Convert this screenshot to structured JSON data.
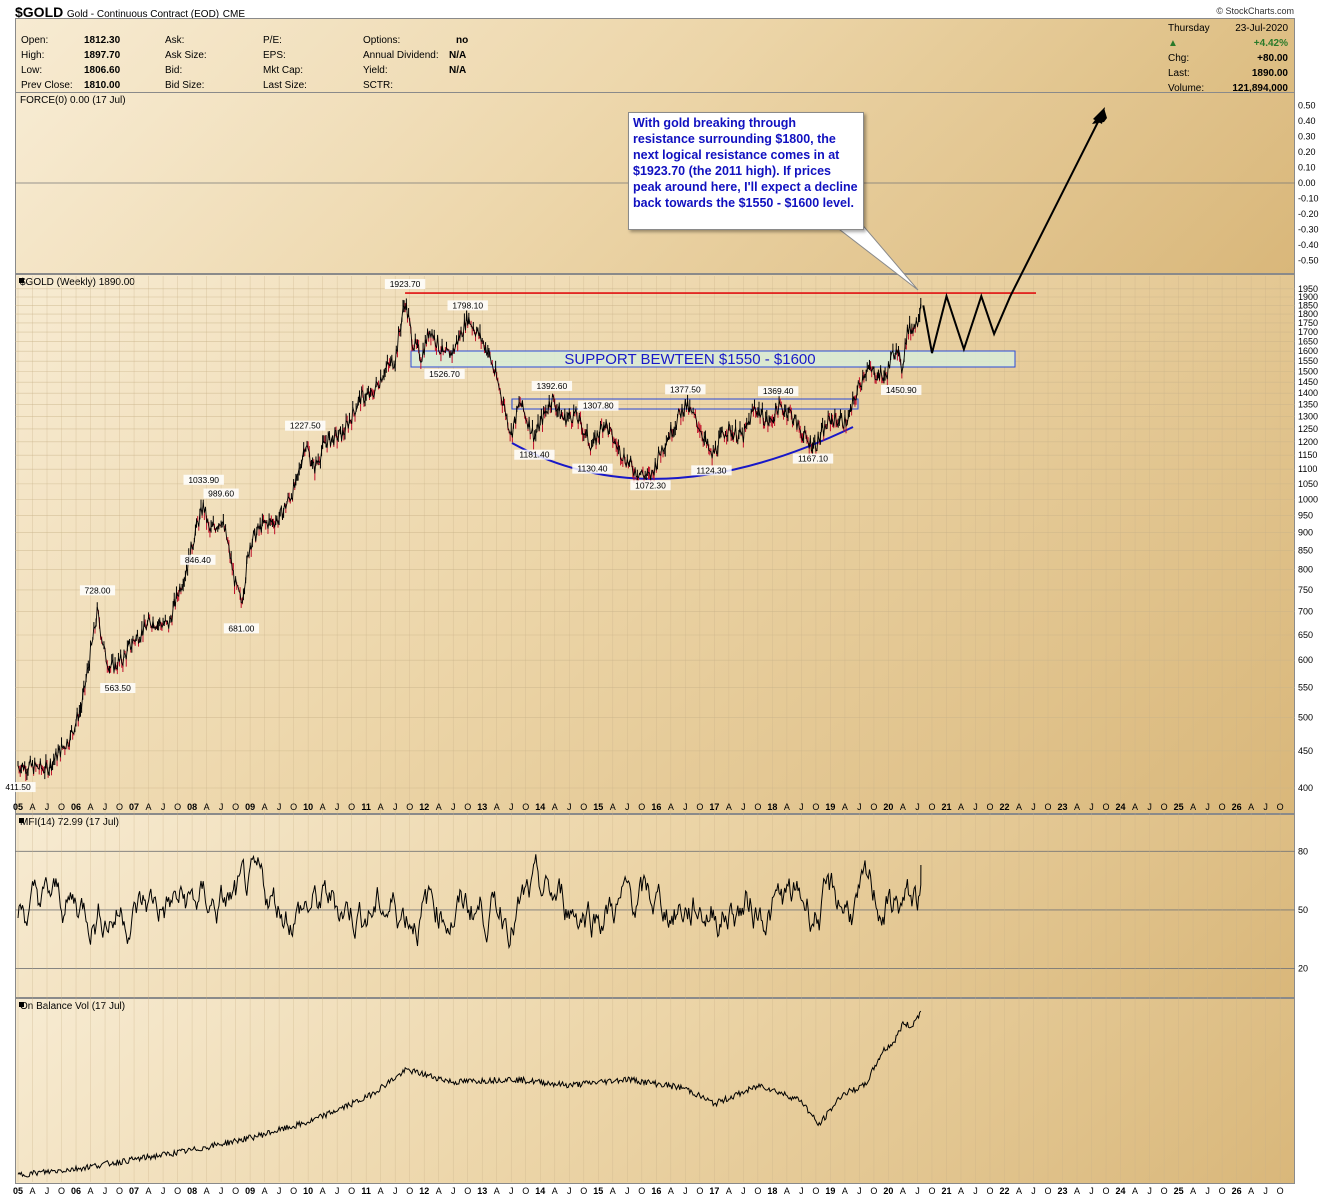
{
  "header": {
    "symbol": "$GOLD",
    "description": "Gold - Continuous Contract (EOD)",
    "exchange": "CME",
    "brand": "© StockCharts.com"
  },
  "info": {
    "open_label": "Open:",
    "open": "1812.30",
    "high_label": "High:",
    "high": "1897.70",
    "low_label": "Low:",
    "low": "1806.60",
    "prev_label": "Prev Close:",
    "prev": "1810.00",
    "ask_label": "Ask:",
    "asksize_label": "Ask Size:",
    "bid_label": "Bid:",
    "bidsize_label": "Bid Size:",
    "pe_label": "P/E:",
    "eps_label": "EPS:",
    "mktcap_label": "Mkt Cap:",
    "lastsize_label": "Last Size:",
    "options_label": "Options:",
    "options": "no",
    "div_label": "Annual Dividend:",
    "div": "N/A",
    "yield_label": "Yield:",
    "yield": "N/A",
    "sctr_label": "SCTR:"
  },
  "quote": {
    "day": "Thursday",
    "date": "23-Jul-2020",
    "pct": "+4.42%",
    "chg_label": "Chg:",
    "chg": "+80.00",
    "last_label": "Last:",
    "last": "1890.00",
    "volume_label": "Volume:",
    "volume": "121,894,000"
  },
  "force_label": "FORCE(0) 0.00 (17 Jul)",
  "main_label": "$GOLD (Weekly) 1890.00",
  "mfi_label": "MFI(14) 72.99 (17 Jul)",
  "obv_label": "On Balance Vol (17 Jul)",
  "callout_text": "With gold breaking through resistance surrounding $1800, the next logical resistance comes in at $1923.70 (the 2011 high). If prices peak around here, I'll expect a decline back towards the $1550 - $1600 level.",
  "support_label": "SUPPORT BEWTEEN $1550 - $1600",
  "colors": {
    "price": "#000000",
    "down": "#c0102a",
    "resistance": "#e01010",
    "support_fill": "#d8ecd8",
    "support_border": "#2a4ad8",
    "label_blue": "#1818c8"
  },
  "chart_data": [
    {
      "type": "candlestick",
      "panel": "price",
      "y_scale": "log",
      "yticks": [
        1950,
        1900,
        1850,
        1800,
        1750,
        1700,
        1650,
        1600,
        1550,
        1500,
        1450,
        1400,
        1350,
        1300,
        1250,
        1200,
        1150,
        1100,
        1050,
        1000,
        950,
        900,
        850,
        800,
        750,
        700,
        650,
        600,
        550,
        500,
        450,
        400
      ],
      "x_axis_labels": [
        "05",
        "A",
        "J",
        "O",
        "06",
        "A",
        "J",
        "O",
        "07",
        "A",
        "J",
        "O",
        "08",
        "A",
        "J",
        "O",
        "09",
        "A",
        "J",
        "O",
        "10",
        "A",
        "J",
        "O",
        "11",
        "A",
        "J",
        "O",
        "12",
        "A",
        "J",
        "O",
        "13",
        "A",
        "J",
        "O",
        "14",
        "A",
        "J",
        "O",
        "15",
        "A",
        "J",
        "O",
        "16",
        "A",
        "J",
        "O",
        "17",
        "A",
        "J",
        "O",
        "18",
        "A",
        "J",
        "O",
        "19",
        "A",
        "J",
        "O",
        "20",
        "A",
        "J",
        "O",
        "21",
        "A",
        "J",
        "O",
        "22",
        "A",
        "J",
        "O",
        "23",
        "A",
        "J",
        "O",
        "24",
        "A",
        "J",
        "O",
        "25",
        "A",
        "J",
        "O",
        "26",
        "A",
        "J",
        "O"
      ],
      "x_range": [
        2005.0,
        2026.92
      ],
      "close_path": [
        [
          2005.0,
          430
        ],
        [
          2005.5,
          425
        ],
        [
          2005.9,
          470
        ],
        [
          2006.1,
          520
        ],
        [
          2006.37,
          700
        ],
        [
          2006.5,
          610
        ],
        [
          2006.6,
          585
        ],
        [
          2006.8,
          600
        ],
        [
          2007.0,
          640
        ],
        [
          2007.3,
          680
        ],
        [
          2007.6,
          670
        ],
        [
          2007.75,
          740
        ],
        [
          2007.9,
          800
        ],
        [
          2008.05,
          900
        ],
        [
          2008.2,
          980
        ],
        [
          2008.3,
          900
        ],
        [
          2008.5,
          940
        ],
        [
          2008.6,
          880
        ],
        [
          2008.75,
          760
        ],
        [
          2008.85,
          720
        ],
        [
          2009.0,
          870
        ],
        [
          2009.2,
          920
        ],
        [
          2009.5,
          940
        ],
        [
          2009.8,
          1050
        ],
        [
          2009.95,
          1200
        ],
        [
          2010.1,
          1100
        ],
        [
          2010.3,
          1200
        ],
        [
          2010.6,
          1230
        ],
        [
          2010.9,
          1380
        ],
        [
          2011.1,
          1390
        ],
        [
          2011.3,
          1500
        ],
        [
          2011.5,
          1560
        ],
        [
          2011.6,
          1750
        ],
        [
          2011.67,
          1880
        ],
        [
          2011.8,
          1650
        ],
        [
          2011.95,
          1570
        ],
        [
          2012.1,
          1720
        ],
        [
          2012.35,
          1570
        ],
        [
          2012.5,
          1600
        ],
        [
          2012.75,
          1780
        ],
        [
          2012.95,
          1680
        ],
        [
          2013.1,
          1600
        ],
        [
          2013.3,
          1420
        ],
        [
          2013.5,
          1230
        ],
        [
          2013.65,
          1360
        ],
        [
          2013.9,
          1220
        ],
        [
          2014.2,
          1380
        ],
        [
          2014.4,
          1290
        ],
        [
          2014.6,
          1310
        ],
        [
          2014.9,
          1180
        ],
        [
          2015.1,
          1280
        ],
        [
          2015.3,
          1190
        ],
        [
          2015.6,
          1100
        ],
        [
          2015.9,
          1070
        ],
        [
          2016.1,
          1180
        ],
        [
          2016.5,
          1350
        ],
        [
          2016.75,
          1260
        ],
        [
          2016.95,
          1140
        ],
        [
          2017.2,
          1250
        ],
        [
          2017.5,
          1220
        ],
        [
          2017.7,
          1340
        ],
        [
          2017.95,
          1270
        ],
        [
          2018.1,
          1340
        ],
        [
          2018.3,
          1320
        ],
        [
          2018.6,
          1200
        ],
        [
          2018.75,
          1190
        ],
        [
          2019.0,
          1290
        ],
        [
          2019.3,
          1280
        ],
        [
          2019.45,
          1400
        ],
        [
          2019.6,
          1510
        ],
        [
          2019.8,
          1490
        ],
        [
          2019.95,
          1470
        ],
        [
          2020.05,
          1560
        ],
        [
          2020.15,
          1640
        ],
        [
          2020.22,
          1490
        ],
        [
          2020.32,
          1700
        ],
        [
          2020.4,
          1720
        ],
        [
          2020.5,
          1760
        ],
        [
          2020.56,
          1890
        ]
      ],
      "annotations": [
        {
          "label": "411.50",
          "x": 2005.0,
          "y": 411.5
        },
        {
          "label": "728.00",
          "x": 2006.37,
          "y": 728.0
        },
        {
          "label": "563.50",
          "x": 2006.72,
          "y": 563.5
        },
        {
          "label": "1033.90",
          "x": 2008.2,
          "y": 1033.9
        },
        {
          "label": "989.60",
          "x": 2008.5,
          "y": 989.6
        },
        {
          "label": "846.40",
          "x": 2008.1,
          "y": 846.4
        },
        {
          "label": "681.00",
          "x": 2008.85,
          "y": 681.0
        },
        {
          "label": "1227.50",
          "x": 2009.95,
          "y": 1227.5
        },
        {
          "label": "1923.70",
          "x": 2011.67,
          "y": 1923.7
        },
        {
          "label": "1798.10",
          "x": 2012.75,
          "y": 1798.1
        },
        {
          "label": "1526.70",
          "x": 2012.35,
          "y": 1526.7
        },
        {
          "label": "1392.60",
          "x": 2014.2,
          "y": 1392.6
        },
        {
          "label": "1181.40",
          "x": 2013.9,
          "y": 1181.4
        },
        {
          "label": "1307.80",
          "x": 2015.0,
          "y": 1307.8
        },
        {
          "label": "1130.40",
          "x": 2014.9,
          "y": 1130.4
        },
        {
          "label": "1072.30",
          "x": 2015.9,
          "y": 1072.3
        },
        {
          "label": "1377.50",
          "x": 2016.5,
          "y": 1377.5
        },
        {
          "label": "1124.30",
          "x": 2016.95,
          "y": 1124.3
        },
        {
          "label": "1369.40",
          "x": 2018.1,
          "y": 1369.4
        },
        {
          "label": "1167.10",
          "x": 2018.7,
          "y": 1167.1
        },
        {
          "label": "1450.90",
          "x": 2020.22,
          "y": 1450.9
        }
      ],
      "resistance": 1923.7,
      "support_zone": [
        1550,
        1600
      ],
      "projection_path": [
        [
          2020.56,
          1850
        ],
        [
          2020.72,
          1590
        ],
        [
          2020.95,
          1900
        ],
        [
          2021.2,
          1610
        ],
        [
          2021.5,
          1910
        ],
        [
          2021.7,
          1680
        ],
        [
          2022.0,
          1920
        ],
        [
          2023.4,
          "arrow-top"
        ]
      ]
    },
    {
      "type": "line",
      "panel": "force",
      "yticks": [
        0.5,
        0.4,
        0.3,
        0.2,
        0.1,
        0.0,
        -0.1,
        -0.2,
        -0.3,
        -0.4,
        -0.5
      ],
      "ylim": [
        -0.55,
        0.55
      ]
    },
    {
      "type": "line",
      "panel": "mfi",
      "yticks": [
        80,
        50,
        20
      ],
      "ylim": [
        8,
        95
      ],
      "last": 72.99
    },
    {
      "type": "line",
      "panel": "obv",
      "x_axis_labels": [
        "05",
        "A",
        "J",
        "O",
        "06",
        "A",
        "J",
        "O",
        "07",
        "A",
        "J",
        "O",
        "08",
        "A",
        "J",
        "O",
        "09",
        "A",
        "J",
        "O",
        "10",
        "A",
        "J",
        "O",
        "11",
        "A",
        "J",
        "O",
        "12",
        "A",
        "J",
        "O",
        "13",
        "A",
        "J",
        "O",
        "14",
        "A",
        "J",
        "O",
        "15",
        "A",
        "J",
        "O",
        "16",
        "A",
        "J",
        "O",
        "17",
        "A",
        "J",
        "O",
        "18",
        "A",
        "J",
        "O",
        "19",
        "A",
        "J",
        "O",
        "20",
        "A",
        "J",
        "O",
        "21",
        "A",
        "J",
        "O",
        "22",
        "A",
        "J",
        "O",
        "23",
        "A",
        "J",
        "O",
        "24",
        "A",
        "J",
        "O",
        "25",
        "A",
        "J",
        "O",
        "26",
        "A",
        "J",
        "O"
      ],
      "shape_path": [
        [
          2005.0,
          2
        ],
        [
          2006.0,
          6
        ],
        [
          2007.0,
          12
        ],
        [
          2008.0,
          18
        ],
        [
          2009.0,
          26
        ],
        [
          2010.0,
          36
        ],
        [
          2011.0,
          52
        ],
        [
          2011.7,
          70
        ],
        [
          2012.5,
          62
        ],
        [
          2013.5,
          64
        ],
        [
          2014.5,
          60
        ],
        [
          2015.5,
          64
        ],
        [
          2016.5,
          58
        ],
        [
          2017.0,
          48
        ],
        [
          2017.8,
          60
        ],
        [
          2018.5,
          50
        ],
        [
          2018.8,
          34
        ],
        [
          2019.2,
          54
        ],
        [
          2019.6,
          60
        ],
        [
          2019.9,
          82
        ],
        [
          2020.1,
          88
        ],
        [
          2020.25,
          100
        ],
        [
          2020.4,
          98
        ],
        [
          2020.56,
          108
        ]
      ]
    }
  ]
}
